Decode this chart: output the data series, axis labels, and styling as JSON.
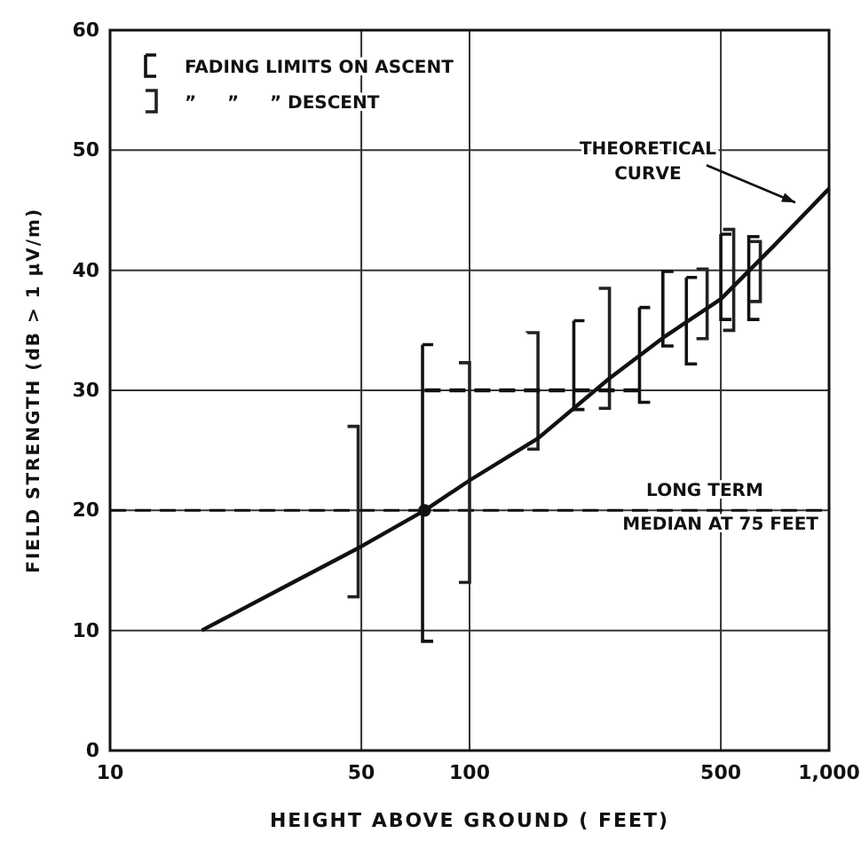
{
  "chart_data": {
    "type": "line",
    "xlabel": "HEIGHT ABOVE GROUND ( FEET)",
    "ylabel": "FIELD STRENGTH  (dB > 1 µV/m)",
    "xlim": [
      10,
      1000
    ],
    "ylim": [
      0,
      60
    ],
    "log": "x",
    "grid": true,
    "legend": "top left",
    "xticks": [
      10,
      50,
      100,
      500,
      {
        "value": 1000,
        "label": "1,000"
      }
    ],
    "yticks": [
      0,
      10,
      20,
      30,
      40,
      50,
      60
    ],
    "series": [
      {
        "type": "bar",
        "name": "FADING LIMITS ON ASCENT",
        "color": "#111111",
        "x": [
          74,
          195,
          297,
          345,
          401,
          500,
          598
        ],
        "base": [
          9.1,
          28.4,
          29.0,
          33.7,
          32.2,
          35.9,
          35.9
        ],
        "values": [
          24.7,
          7.4,
          7.9,
          6.2,
          7.2,
          7.1,
          6.9
        ]
      },
      {
        "type": "bar",
        "name": "”     ”     ” DESCENT",
        "color": "#222222",
        "x": [
          49,
          100,
          155,
          245,
          458,
          543,
          644
        ],
        "base": [
          12.8,
          14.0,
          25.1,
          28.5,
          34.3,
          35.0,
          37.4
        ],
        "values": [
          14.2,
          18.3,
          9.7,
          10.0,
          5.8,
          8.4,
          5.0
        ]
      },
      {
        "color": "#111111",
        "line_style": "solid",
        "x": [
          18,
          30,
          50,
          75,
          100,
          155,
          245,
          350,
          500,
          700,
          1000
        ],
        "values": [
          10,
          13.5,
          17,
          20,
          22.5,
          26,
          31,
          34.5,
          37.6,
          42,
          46.8
        ]
      },
      {
        "color": "#111111",
        "line_style": "dashed",
        "x": [
          75,
          300
        ],
        "values": [
          30,
          30
        ]
      },
      {
        "type": "scatter",
        "color": "#111111",
        "marker": "circle",
        "x": [
          75
        ],
        "values": [
          20
        ]
      }
    ],
    "ref_lines": [
      {
        "axis": "y",
        "value": 20,
        "label": "LONG TERM MEDIAN AT 75 FEET",
        "line_style": "dashed",
        "color": "#111111"
      }
    ],
    "annotations": [
      {
        "text": "THEORETICAL CURVE",
        "x": 824,
        "y": 45.2
      }
    ]
  }
}
